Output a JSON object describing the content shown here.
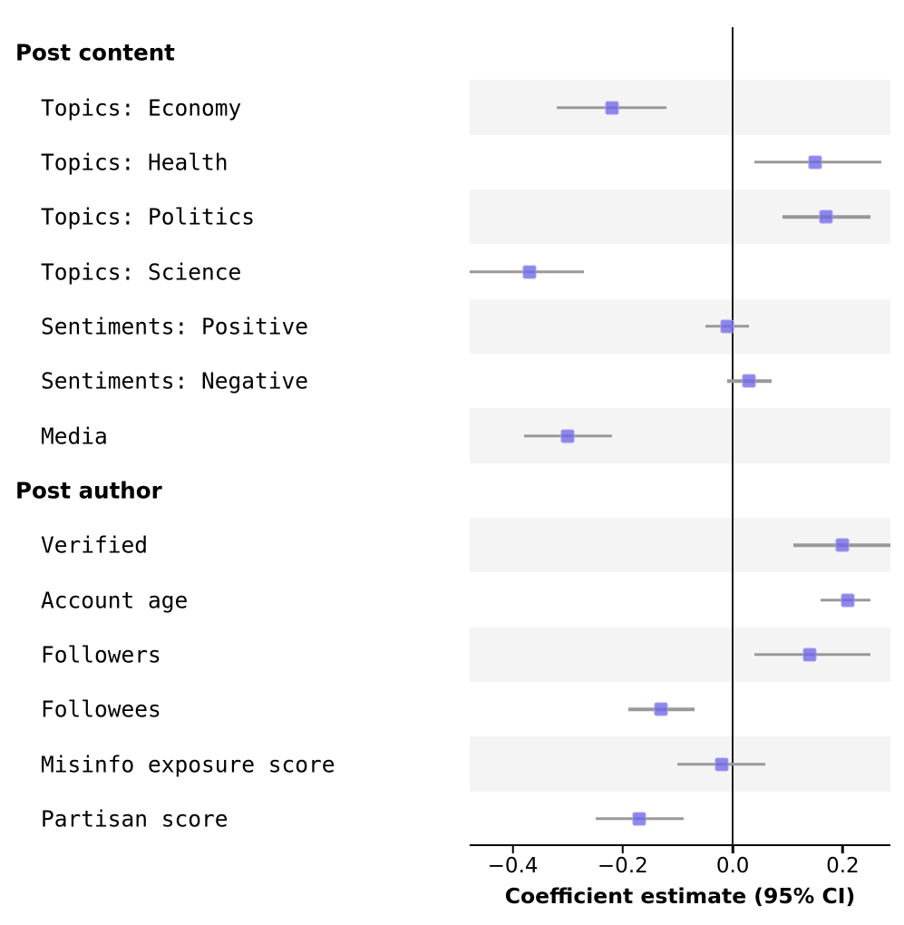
{
  "chart_data": {
    "type": "scatter",
    "subtype": "forest-coefficient-plot",
    "title": "",
    "xlabel": "Coefficient estimate (95% CI)",
    "ylabel": "",
    "xlim": [
      -0.4785,
      0.2868
    ],
    "grid": false,
    "legend": null,
    "zero_line": 0.0,
    "x_ticks": [
      {
        "value": -0.4,
        "label": "−0.4"
      },
      {
        "value": -0.2,
        "label": "−0.2"
      },
      {
        "value": 0.0,
        "label": "0.0"
      },
      {
        "value": 0.2,
        "label": "0.2"
      }
    ],
    "rows": [
      {
        "kind": "header",
        "label": "Post content"
      },
      {
        "kind": "data",
        "label": "Topics: Economy",
        "estimate": -0.22,
        "ci_low": -0.32,
        "ci_high": -0.12
      },
      {
        "kind": "data",
        "label": "Topics: Health",
        "estimate": 0.15,
        "ci_low": 0.04,
        "ci_high": 0.27
      },
      {
        "kind": "data",
        "label": "Topics: Politics",
        "estimate": 0.17,
        "ci_low": 0.09,
        "ci_high": 0.25
      },
      {
        "kind": "data",
        "label": "Topics: Science",
        "estimate": -0.37,
        "ci_low": -0.478,
        "ci_high": -0.27
      },
      {
        "kind": "data",
        "label": "Sentiments: Positive",
        "estimate": -0.01,
        "ci_low": -0.05,
        "ci_high": 0.03
      },
      {
        "kind": "data",
        "label": "Sentiments: Negative",
        "estimate": 0.03,
        "ci_low": -0.01,
        "ci_high": 0.07
      },
      {
        "kind": "data",
        "label": "Media",
        "estimate": -0.3,
        "ci_low": -0.38,
        "ci_high": -0.22
      },
      {
        "kind": "header",
        "label": "Post author"
      },
      {
        "kind": "data",
        "label": "Verified",
        "estimate": 0.2,
        "ci_low": 0.11,
        "ci_high": 0.287
      },
      {
        "kind": "data",
        "label": "Account age",
        "estimate": 0.21,
        "ci_low": 0.16,
        "ci_high": 0.25
      },
      {
        "kind": "data",
        "label": "Followers",
        "estimate": 0.14,
        "ci_low": 0.04,
        "ci_high": 0.25
      },
      {
        "kind": "data",
        "label": "Followees",
        "estimate": -0.13,
        "ci_low": -0.19,
        "ci_high": -0.07
      },
      {
        "kind": "data",
        "label": "Misinfo exposure score",
        "estimate": -0.02,
        "ci_low": -0.1,
        "ci_high": 0.06
      },
      {
        "kind": "data",
        "label": "Partisan score",
        "estimate": -0.17,
        "ci_low": -0.25,
        "ci_high": -0.09
      }
    ],
    "colors": {
      "marker_fill": "rgba(110,102,232,0.78)",
      "marker_edge": "rgba(164,157,242,0.95)",
      "error_bar": "#999999",
      "stripe": "#f4f4f5",
      "zero_line": "#1a1a1a",
      "axis": "#000000",
      "text": "#000000"
    }
  }
}
